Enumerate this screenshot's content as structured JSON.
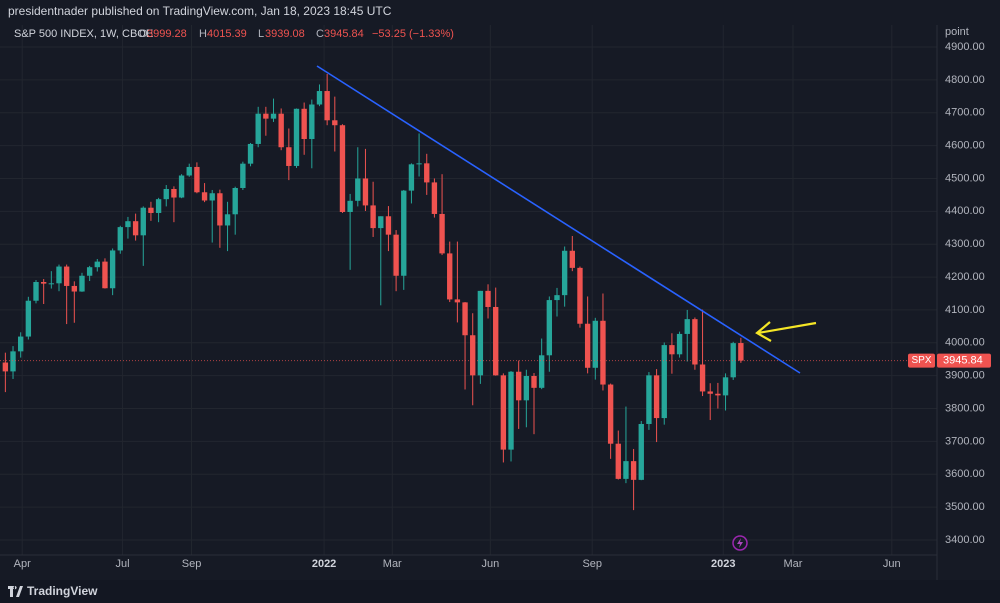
{
  "header": {
    "publisher": "presidentnader published on TradingView.com, Jan 18, 2023 18:45 UTC"
  },
  "footer": {
    "brand": "TradingView"
  },
  "chart_data": {
    "type": "candlestick",
    "title": "S&P 500 INDEX, 1W, CBOE",
    "ohlc_prefixes": [
      "O",
      "H",
      "L",
      "C"
    ],
    "change": "−53.25 (−1.33%)",
    "symbol": "SPX",
    "y_axis_label": "point",
    "up_color": "#26a69a",
    "down_color": "#ef5350",
    "grid": true,
    "ylim": [
      3354.4,
      4966.9
    ],
    "yticks": [
      {
        "value": 3400,
        "label": "3400.00"
      },
      {
        "value": 3500,
        "label": "3500.00"
      },
      {
        "value": 3600,
        "label": "3600.00"
      },
      {
        "value": 3700,
        "label": "3700.00"
      },
      {
        "value": 3800,
        "label": "3800.00"
      },
      {
        "value": 3900,
        "label": "3900.00"
      },
      {
        "value": 4000,
        "label": "4000.00"
      },
      {
        "value": 4100,
        "label": "4100.00"
      },
      {
        "value": 4200,
        "label": "4200.00"
      },
      {
        "value": 4300,
        "label": "4300.00"
      },
      {
        "value": 4400,
        "label": "4400.00"
      },
      {
        "value": 4500,
        "label": "4500.00"
      },
      {
        "value": 4600,
        "label": "4600.00"
      },
      {
        "value": 4700,
        "label": "4700.00"
      },
      {
        "value": 4800,
        "label": "4800.00"
      },
      {
        "value": 4900,
        "label": "4900.00"
      }
    ],
    "xlim": [
      -0.7,
      121.6
    ],
    "xticks": [
      {
        "value": 2.2,
        "label": "Apr"
      },
      {
        "value": 15.3,
        "label": "Jul"
      },
      {
        "value": 24.3,
        "label": "Sep"
      },
      {
        "value": 41.6,
        "label": "2022"
      },
      {
        "value": 50.5,
        "label": "Mar"
      },
      {
        "value": 63.3,
        "label": "Jun"
      },
      {
        "value": 76.6,
        "label": "Sep"
      },
      {
        "value": 93.7,
        "label": "2023"
      },
      {
        "value": 102.8,
        "label": "Mar"
      },
      {
        "value": 115.7,
        "label": "Jun"
      }
    ],
    "open": [
      3940,
      3913,
      3974,
      4019,
      4128,
      4185,
      4180,
      4181,
      4232,
      4173,
      4156,
      4204,
      4230,
      4247,
      4166,
      4281,
      4352,
      4370,
      4327,
      4411,
      4395,
      4437,
      4468,
      4442,
      4509,
      4535,
      4458,
      4433,
      4455,
      4357,
      4391,
      4471,
      4545,
      4605,
      4697,
      4682,
      4697,
      4595,
      4538,
      4712,
      4620,
      4725,
      4766,
      4677,
      4662,
      4398,
      4432,
      4500,
      4418,
      4349,
      4385,
      4329,
      4204,
      4463,
      4543,
      4546,
      4488,
      4392,
      4272,
      4132,
      4123,
      4023,
      3901,
      4158,
      4109,
      3901,
      3675,
      3912,
      3825,
      3899,
      3863,
      3962,
      4130,
      4145,
      4280,
      4228,
      4058,
      3924,
      4067,
      3873,
      3693,
      3586,
      3640,
      3583,
      3753,
      3901,
      3771,
      3993,
      3965,
      4027,
      4072,
      3934,
      3852,
      3845,
      3840,
      3895,
      3999.28
    ],
    "high": [
      3970,
      3990,
      4032,
      4140,
      4191,
      4194,
      4218,
      4238,
      4238,
      4187,
      4213,
      4234,
      4255,
      4257,
      4287,
      4356,
      4383,
      4393,
      4415,
      4429,
      4441,
      4480,
      4476,
      4513,
      4545,
      4549,
      4486,
      4465,
      4466,
      4429,
      4475,
      4551,
      4608,
      4718,
      4718,
      4743,
      4713,
      4652,
      4713,
      4731,
      4740,
      4786,
      4818,
      4749,
      4665,
      4453,
      4595,
      4590,
      4490,
      4385,
      4416,
      4343,
      4465,
      4546,
      4637,
      4575,
      4500,
      4513,
      4308,
      4308,
      4124,
      4090,
      4158,
      4178,
      4168,
      3907,
      3914,
      3946,
      3918,
      3908,
      4013,
      4141,
      4167,
      4293,
      4325,
      4232,
      4141,
      4076,
      4150,
      3876,
      3733,
      3806,
      3677,
      3762,
      3911,
      3920,
      4001,
      4029,
      4034,
      4100,
      4077,
      4101,
      3877,
      3878,
      3907,
      4003,
      4015.39
    ],
    "low": [
      3850,
      3890,
      3955,
      4010,
      4120,
      4118,
      4165,
      4157,
      4057,
      4061,
      4155,
      4188,
      4217,
      4165,
      4145,
      4271,
      4317,
      4311,
      4234,
      4371,
      4367,
      4415,
      4367,
      4440,
      4505,
      4455,
      4428,
      4305,
      4289,
      4279,
      4329,
      4465,
      4537,
      4595,
      4630,
      4672,
      4586,
      4495,
      4532,
      4572,
      4531,
      4720,
      4662,
      4582,
      4395,
      4222,
      4415,
      4401,
      4322,
      4114,
      4279,
      4157,
      4161,
      4424,
      4506,
      4450,
      4381,
      4267,
      4124,
      4062,
      3858,
      3810,
      3875,
      4074,
      3900,
      3636,
      3639,
      3738,
      3743,
      3722,
      3859,
      3912,
      4080,
      4110,
      4218,
      4046,
      3907,
      3888,
      3855,
      3647,
      3584,
      3573,
      3491,
      3582,
      3735,
      3698,
      3751,
      3906,
      3955,
      3943,
      3918,
      3838,
      3765,
      3800,
      3794,
      3887,
      3939.08
    ],
    "close": [
      3913,
      3974,
      4019,
      4128,
      4185,
      4180,
      4181,
      4232,
      4173,
      4156,
      4204,
      4230,
      4247,
      4166,
      4281,
      4352,
      4370,
      4327,
      4411,
      4395,
      4437,
      4468,
      4442,
      4509,
      4535,
      4458,
      4433,
      4455,
      4357,
      4391,
      4471,
      4545,
      4605,
      4697,
      4682,
      4697,
      4595,
      4538,
      4712,
      4620,
      4725,
      4766,
      4677,
      4662,
      4398,
      4432,
      4500,
      4418,
      4349,
      4385,
      4329,
      4204,
      4463,
      4543,
      4546,
      4488,
      4392,
      4272,
      4132,
      4123,
      4023,
      3901,
      4158,
      4109,
      3901,
      3675,
      3912,
      3825,
      3899,
      3863,
      3962,
      4130,
      4145,
      4280,
      4228,
      4058,
      3924,
      4067,
      3873,
      3693,
      3586,
      3640,
      3583,
      3753,
      3901,
      3771,
      3993,
      3965,
      4027,
      4072,
      3934,
      3852,
      3845,
      3840,
      3895,
      3999,
      3945.84
    ]
  }
}
